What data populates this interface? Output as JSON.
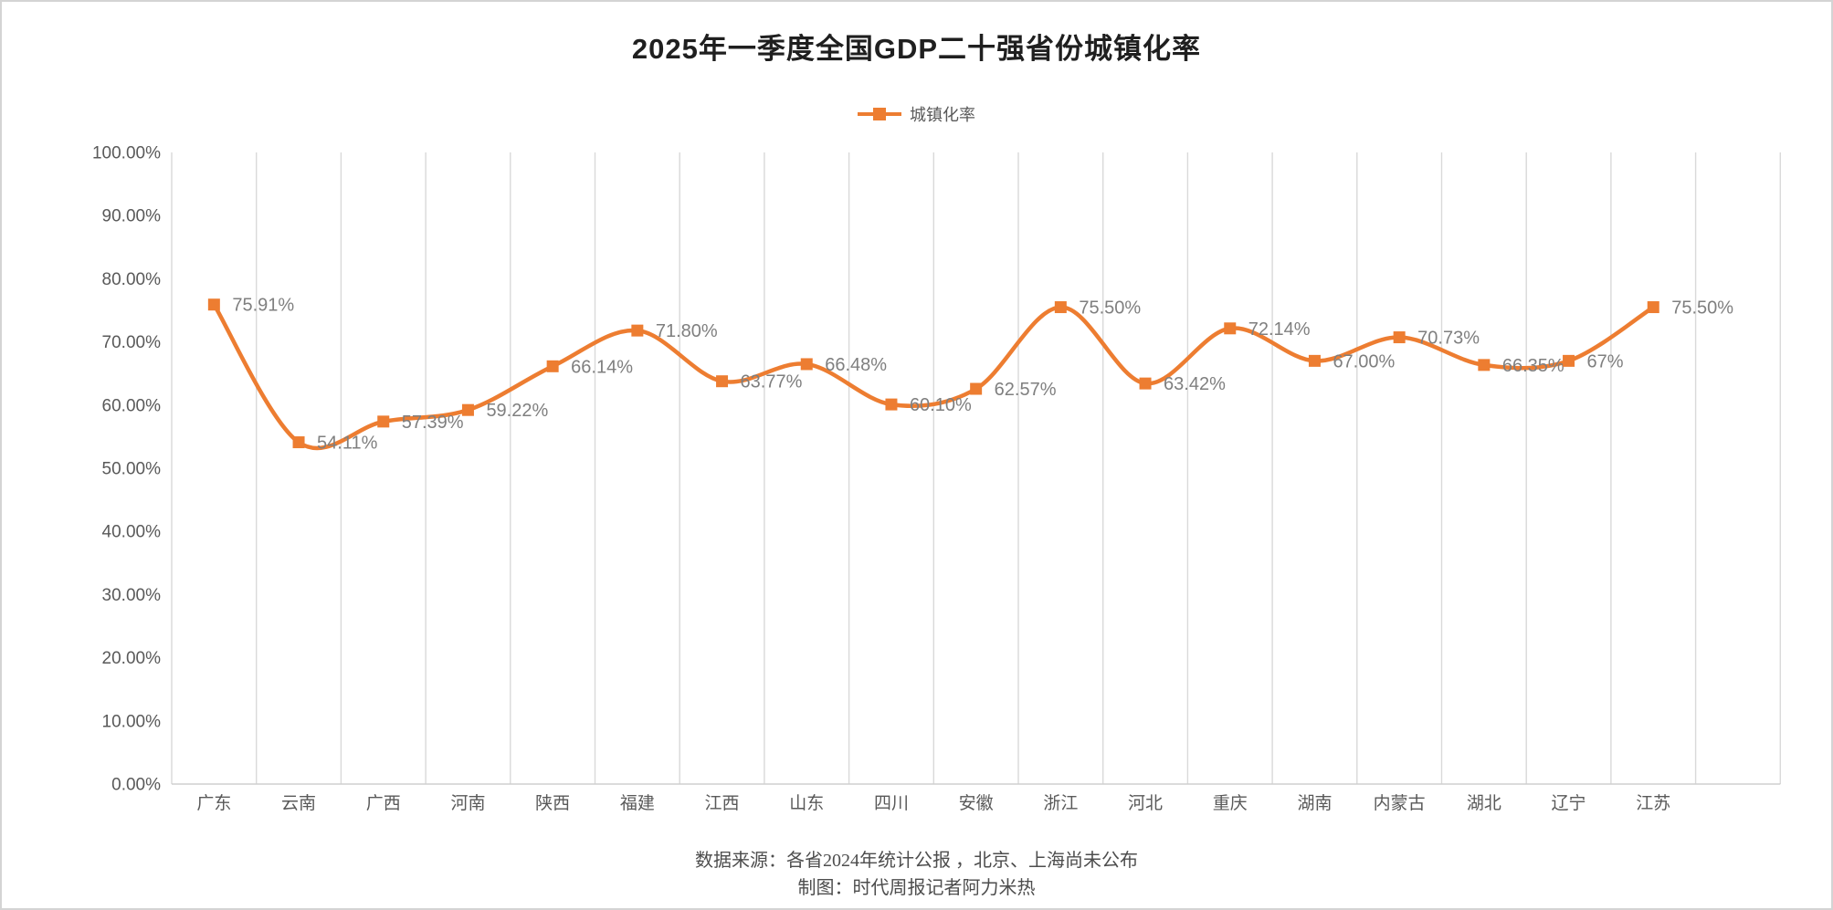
{
  "chart_data": {
    "type": "line",
    "title": "2025年一季度全国GDP二十强省份城镇化率",
    "legend_label": "城镇化率",
    "legend_position": "top-center",
    "smooth": true,
    "marker": "square",
    "categories": [
      "广东",
      "云南",
      "广西",
      "河南",
      "陕西",
      "福建",
      "江西",
      "山东",
      "四川",
      "安徽",
      "浙江",
      "河北",
      "重庆",
      "湖南",
      "内蒙古",
      "湖北",
      "辽宁",
      "江苏"
    ],
    "series": [
      {
        "name": "城镇化率",
        "values": [
          75.91,
          54.11,
          57.39,
          59.22,
          66.14,
          71.8,
          63.77,
          66.48,
          60.1,
          62.57,
          75.5,
          63.42,
          72.14,
          67.0,
          70.73,
          66.35,
          67.0,
          75.5
        ],
        "point_labels": [
          "75.91%",
          "54.11%",
          "57.39%",
          "59.22%",
          "66.14%",
          "71.80%",
          "63.77%",
          "66.48%",
          "60.10%",
          "62.57%",
          "75.50%",
          "63.42%",
          "72.14%",
          "67.00%",
          "70.73%",
          "66.35%",
          "67%",
          "75.50%"
        ]
      }
    ],
    "ylim": [
      0,
      100
    ],
    "ytick_labels": [
      "0.00%",
      "10.00%",
      "20.00%",
      "30.00%",
      "40.00%",
      "50.00%",
      "60.00%",
      "70.00%",
      "80.00%",
      "90.00%",
      "100.00%"
    ],
    "grid": "vertical-category-lines",
    "colors": {
      "series": "#ED7D31",
      "gridline": "#D9D9D9",
      "axis_line": "#CFCFCF",
      "tick_text": "#595959",
      "point_label_text": "#7F7F7F",
      "title_text": "#1F1F1F",
      "footer_text": "#4D4D4D"
    }
  },
  "footer": {
    "line1": "数据来源：各省2024年统计公报 ，北京、上海尚未公布",
    "line2": "制图：时代周报记者阿力米热"
  }
}
